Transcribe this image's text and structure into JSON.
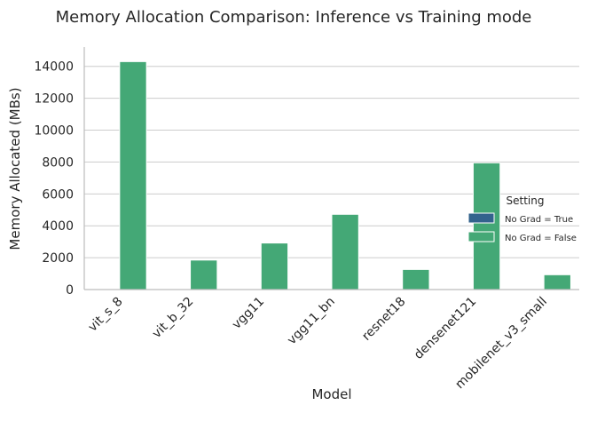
{
  "chart_data": {
    "type": "bar",
    "title": "Memory Allocation Comparison: Inference vs Training mode",
    "xlabel": "Model",
    "ylabel": "Memory Allocated (MBs)",
    "categories": [
      "vit_s_8",
      "vit_b_32",
      "vgg11",
      "vgg11_bn",
      "resnet18",
      "densenet121",
      "mobilenet_v3_small"
    ],
    "series": [
      {
        "name": "No Grad = True",
        "color": "#33638d",
        "values": [
          0,
          0,
          0,
          0,
          0,
          0,
          0
        ]
      },
      {
        "name": "No Grad = False",
        "color": "#44a876",
        "values": [
          14300,
          1850,
          2920,
          4720,
          1260,
          7950,
          930
        ]
      }
    ],
    "ylim": [
      0,
      15100
    ],
    "yticks": [
      0,
      2000,
      4000,
      6000,
      8000,
      10000,
      12000,
      14000
    ],
    "grid": "horizontal",
    "legend": {
      "title": "Setting",
      "placement": "center-right"
    }
  }
}
